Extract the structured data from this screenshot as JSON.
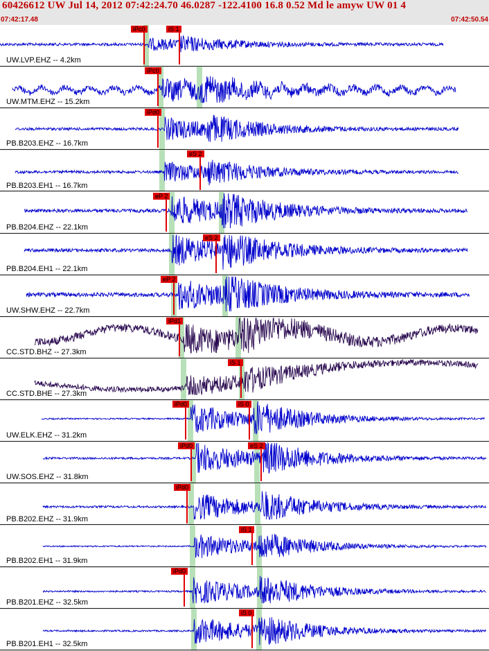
{
  "header": {
    "title": "60426612 UW Jul 14, 2012 07:42:24.70    46.0287 -122.4100 16.8 0.52 Md le amyw UW 01    4",
    "time_start": "07:42:17.48",
    "time_end": "07:42:50.54"
  },
  "colors": {
    "trace_blue": "#0000cc",
    "trace_dark": "#2a0a50",
    "pick_red": "#e00000",
    "window_green": "#b8e0b8",
    "header_bg": "#e6e6e6"
  },
  "channels": [
    {
      "label": "UW.LVP.EHZ -- 4.2km",
      "picks": [
        "iPc0",
        "iS 1"
      ]
    },
    {
      "label": "UW.MTM.EHZ -- 15.2km",
      "picks": [
        "iPc0"
      ]
    },
    {
      "label": "PB.B203.EHZ -- 16.7km",
      "picks": [
        "iPd0"
      ]
    },
    {
      "label": "PB.B203.EH1 -- 16.7km",
      "picks": [
        "eS 2"
      ]
    },
    {
      "label": "PB.B204.EHZ -- 22.1km",
      "picks": [
        "eP 2"
      ]
    },
    {
      "label": "PB.B204.EH1 -- 22.1km",
      "picks": [
        "eS 2"
      ]
    },
    {
      "label": "UW.SHW.EHZ -- 22.7km",
      "picks": [
        "eP 2"
      ]
    },
    {
      "label": "CC.STD.BHZ -- 27.3km",
      "picks": [
        "iPd1"
      ]
    },
    {
      "label": "CC.STD.BHE -- 27.3km",
      "picks": [
        "iS 1"
      ]
    },
    {
      "label": "UW.ELK.EHZ -- 31.2km",
      "picks": [
        "iPd0",
        "iS 0"
      ]
    },
    {
      "label": "UW.SOS.EHZ -- 31.8km",
      "picks": [
        "iPd0",
        "eS 2"
      ]
    },
    {
      "label": "PB.B202.EHZ -- 31.9km",
      "picks": [
        "iPd0"
      ]
    },
    {
      "label": "PB.B202.EH1 -- 31.9km",
      "picks": [
        "iS 1"
      ]
    },
    {
      "label": "PB.B201.EHZ -- 32.5km",
      "picks": [
        "iPd0"
      ]
    },
    {
      "label": "PB.B201.EH1 -- 32.5km",
      "picks": [
        "iS 0"
      ]
    }
  ]
}
